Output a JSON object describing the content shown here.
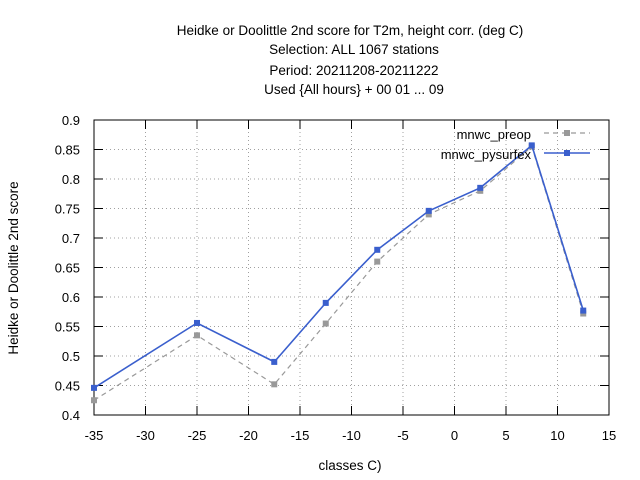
{
  "chart_data": {
    "type": "line",
    "title_lines": [
      "Heidke or Doolittle 2nd score  for T2m, height corr. (deg C)",
      "Selection: ALL    1067 stations",
      "Period: 20211208-20211222",
      "Used {All hours} + 00 01 ... 09"
    ],
    "xlabel": "classes C)",
    "ylabel": "Heidke or Doolittle 2nd score",
    "xlim": [
      -35,
      15
    ],
    "ylim": [
      0.4,
      0.9
    ],
    "x_ticks": [
      -35,
      -30,
      -25,
      -20,
      -15,
      -10,
      -5,
      0,
      5,
      10,
      15
    ],
    "x_tick_labels": [
      "-35",
      "-30",
      "-25",
      "-20",
      "-15",
      "-10",
      "-5",
      "0",
      "5",
      "10",
      "15"
    ],
    "y_ticks": [
      0.4,
      0.45,
      0.5,
      0.55,
      0.6,
      0.65,
      0.7,
      0.75,
      0.8,
      0.85,
      0.9
    ],
    "y_tick_labels": [
      "0.4",
      "0.45",
      "0.5",
      "0.55",
      "0.6",
      "0.65",
      "0.7",
      "0.75",
      "0.8",
      "0.85",
      "0.9"
    ],
    "grid": true,
    "legend_position": "top-right",
    "series": [
      {
        "name": "mnwc_preop",
        "color": "#999999",
        "style": "dashed",
        "marker": "square",
        "x": [
          -35,
          -25,
          -17.5,
          -12.5,
          -7.5,
          -2.5,
          2.5,
          7.5,
          12.5
        ],
        "y": [
          0.425,
          0.535,
          0.452,
          0.555,
          0.66,
          0.74,
          0.78,
          0.855,
          0.572
        ]
      },
      {
        "name": "mnwc_pysurfex",
        "color": "#3a5fcd",
        "style": "solid",
        "marker": "square",
        "x": [
          -35,
          -25,
          -17.5,
          -12.5,
          -7.5,
          -2.5,
          2.5,
          7.5,
          12.5
        ],
        "y": [
          0.446,
          0.556,
          0.49,
          0.59,
          0.68,
          0.746,
          0.785,
          0.857,
          0.577
        ]
      }
    ]
  }
}
